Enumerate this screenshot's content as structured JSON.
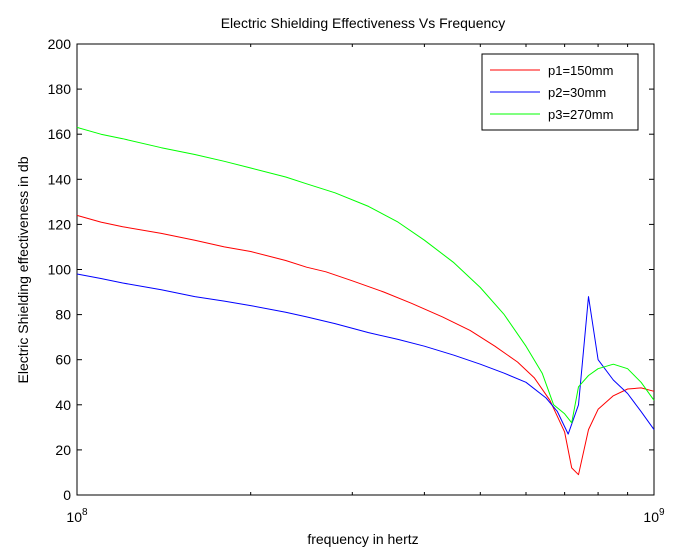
{
  "chart_data": {
    "type": "line",
    "title": "Electric Shielding Effectiveness Vs Frequency",
    "xlabel": "frequency in hertz",
    "ylabel": "Electric Shielding effectiveness in db",
    "xscale": "log",
    "xlim": [
      100000000,
      1000000000
    ],
    "ylim": [
      0,
      200
    ],
    "yticks": [
      0,
      20,
      40,
      60,
      80,
      100,
      120,
      140,
      160,
      180,
      200
    ],
    "yticklabels": [
      "0",
      "20",
      "40",
      "60",
      "80",
      "100",
      "120",
      "140",
      "160",
      "180",
      "200"
    ],
    "xticks": [
      {
        "value": 100000000,
        "base": "10",
        "exp": "8"
      },
      {
        "value": 1000000000,
        "base": "10",
        "exp": "9"
      }
    ],
    "grid": false,
    "legend_position": "top-right",
    "series": [
      {
        "name": "p1=150mm",
        "color": "#ff0000",
        "x": [
          100000000,
          110000000,
          120000000,
          140000000,
          160000000,
          180000000,
          200000000,
          230000000,
          250000000,
          270000000,
          300000000,
          340000000,
          380000000,
          430000000,
          480000000,
          530000000,
          580000000,
          620000000,
          660000000,
          700000000,
          720000000,
          740000000,
          770000000,
          800000000,
          850000000,
          900000000,
          950000000,
          1000000000
        ],
        "y": [
          124,
          121,
          119,
          116,
          113,
          110,
          108,
          104,
          101,
          99,
          95,
          90,
          85,
          79,
          73,
          66,
          59,
          52,
          42,
          28,
          12,
          9,
          29,
          38,
          44,
          47,
          47.5,
          46
        ]
      },
      {
        "name": "p2=30mm",
        "color": "#0000ff",
        "x": [
          100000000,
          110000000,
          120000000,
          140000000,
          160000000,
          180000000,
          200000000,
          230000000,
          250000000,
          280000000,
          320000000,
          360000000,
          400000000,
          450000000,
          500000000,
          550000000,
          600000000,
          650000000,
          680000000,
          710000000,
          740000000,
          770000000,
          800000000,
          850000000,
          900000000,
          950000000,
          1000000000
        ],
        "y": [
          98,
          96,
          94,
          91,
          88,
          86,
          84,
          81,
          79,
          76,
          72,
          69,
          66,
          62,
          58,
          54,
          50,
          43,
          37,
          27,
          40,
          88,
          60,
          51,
          45,
          37,
          29
        ]
      },
      {
        "name": "p3=270mm",
        "color": "#00ff00",
        "x": [
          100000000,
          110000000,
          120000000,
          140000000,
          160000000,
          180000000,
          200000000,
          230000000,
          250000000,
          280000000,
          320000000,
          360000000,
          400000000,
          450000000,
          500000000,
          550000000,
          600000000,
          640000000,
          670000000,
          700000000,
          720000000,
          740000000,
          770000000,
          800000000,
          850000000,
          900000000,
          950000000,
          1000000000
        ],
        "y": [
          163,
          160,
          158,
          154,
          151,
          148,
          145,
          141,
          138,
          134,
          128,
          121,
          113,
          103,
          92,
          80,
          66,
          54,
          40,
          36,
          32,
          48,
          53,
          56,
          58,
          56,
          50,
          42
        ]
      }
    ]
  }
}
